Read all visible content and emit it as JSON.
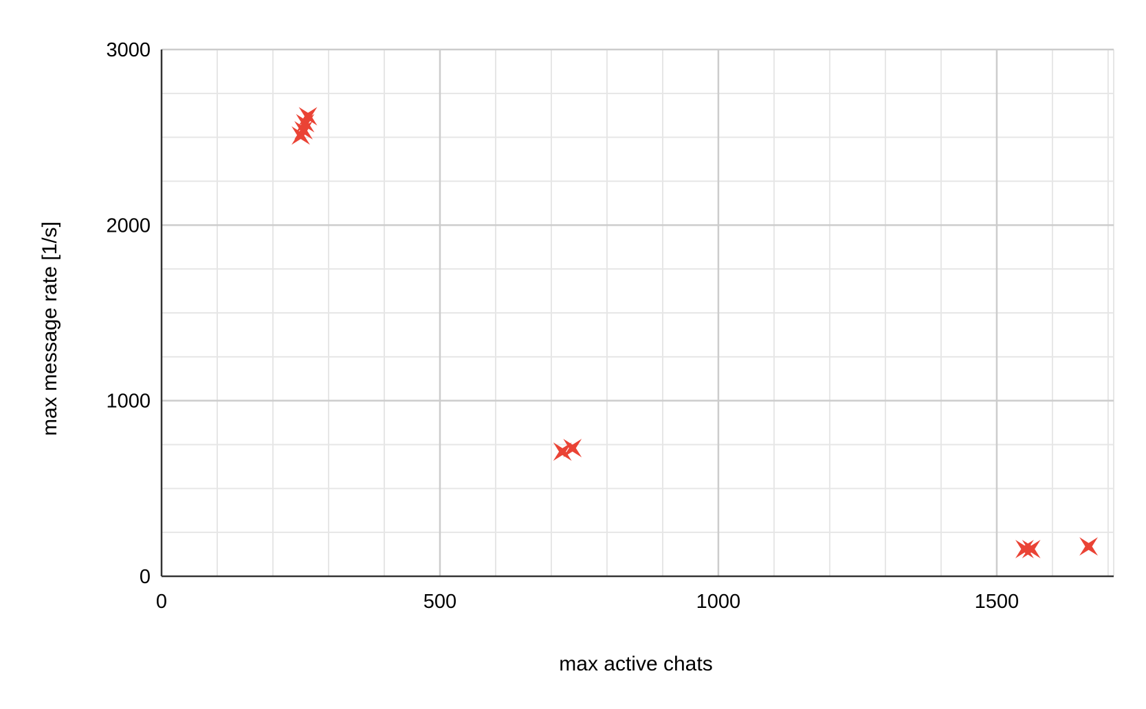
{
  "chart_data": {
    "type": "scatter",
    "title": "",
    "xlabel": "max active chats",
    "ylabel": "max message rate [1/s]",
    "xlim": [
      0,
      1710
    ],
    "ylim": [
      0,
      3000
    ],
    "x_ticks": [
      0,
      500,
      1000,
      1500
    ],
    "y_ticks": [
      0,
      1000,
      2000,
      3000
    ],
    "x_tick_labels": [
      "0",
      "500",
      "1000",
      "1500"
    ],
    "y_tick_labels": [
      "0",
      "1000",
      "2000",
      "3000"
    ],
    "x_minor_step": 100,
    "y_minor_step": 250,
    "grid": true,
    "legend": "none",
    "marker": "star-4",
    "colors": {
      "marker": "#EA4335",
      "major_grid": "#cccccc",
      "minor_grid": "#e6e6e6",
      "axis": "#333333"
    },
    "series": [
      {
        "points": [
          {
            "x": 263,
            "y": 2620
          },
          {
            "x": 258,
            "y": 2580
          },
          {
            "x": 255,
            "y": 2540
          },
          {
            "x": 250,
            "y": 2510
          },
          {
            "x": 720,
            "y": 710
          },
          {
            "x": 738,
            "y": 730
          },
          {
            "x": 1550,
            "y": 155
          },
          {
            "x": 1562,
            "y": 155
          },
          {
            "x": 1665,
            "y": 170
          }
        ]
      }
    ]
  }
}
